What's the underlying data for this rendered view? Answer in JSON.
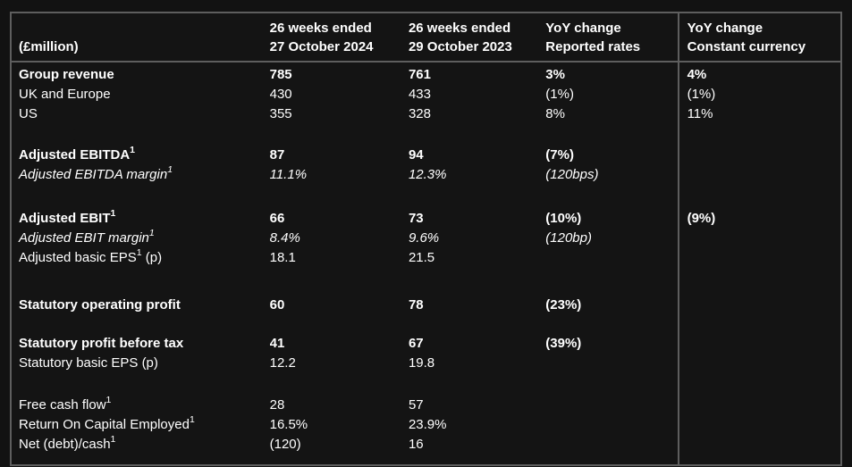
{
  "colors": {
    "page_background": "#121212",
    "table_background": "#141414",
    "border": "#5e5e5e",
    "text": "#ffffff"
  },
  "table": {
    "columns": [
      {
        "line1": "",
        "line2": "(£million)"
      },
      {
        "line1": "26 weeks ended",
        "line2": "27 October 2024"
      },
      {
        "line1": "26 weeks ended",
        "line2": "29 October 2023"
      },
      {
        "line1": "YoY change",
        "line2": "Reported rates"
      },
      {
        "line1": "YoY change",
        "line2": "Constant currency"
      }
    ],
    "rows": [
      {
        "label": "Group revenue",
        "style": "bold",
        "v2024": "785",
        "v2023": "761",
        "yoy_reported": "3%",
        "yoy_constant": "4%"
      },
      {
        "label": "UK and Europe",
        "style": "normal",
        "v2024": "430",
        "v2023": "433",
        "yoy_reported": "(1%)",
        "yoy_constant": "(1%)"
      },
      {
        "label": "US",
        "style": "normal",
        "v2024": "355",
        "v2023": "328",
        "yoy_reported": "8%",
        "yoy_constant": "11%"
      },
      {
        "spacer": 24
      },
      {
        "label": "Adjusted EBITDA",
        "sup": "1",
        "style": "bold",
        "v2024": "87",
        "v2023": "94",
        "yoy_reported": "(7%)",
        "yoy_constant": ""
      },
      {
        "label": "Adjusted EBITDA margin",
        "sup": "1",
        "style": "italic",
        "v2024": "11.1%",
        "v2023": "12.3%",
        "yoy_reported": "(120bps)",
        "yoy_constant": ""
      },
      {
        "spacer": 27
      },
      {
        "label": "Adjusted EBIT",
        "sup": "1",
        "style": "bold",
        "v2024": "66",
        "v2023": "73",
        "yoy_reported": "(10%)",
        "yoy_constant": "(9%)"
      },
      {
        "label": "Adjusted EBIT margin",
        "sup": "1",
        "style": "italic",
        "v2024": "8.4%",
        "v2023": "9.6%",
        "yoy_reported": "(120bp)",
        "yoy_constant": ""
      },
      {
        "label": "Adjusted basic EPS",
        "sup": "1",
        "suffix": " (p)",
        "style": "normal",
        "v2024": "18.1",
        "v2023": "21.5",
        "yoy_reported": "",
        "yoy_constant": ""
      },
      {
        "spacer": 31
      },
      {
        "label": "Statutory operating profit",
        "style": "bold",
        "v2024": "60",
        "v2023": "78",
        "yoy_reported": "(23%)",
        "yoy_constant": ""
      },
      {
        "spacer": 21
      },
      {
        "label": "Statutory profit before tax",
        "style": "bold",
        "v2024": "41",
        "v2023": "67",
        "yoy_reported": "(39%)",
        "yoy_constant": ""
      },
      {
        "label": "Statutory basic EPS (p)",
        "style": "normal",
        "v2024": "12.2",
        "v2023": "19.8",
        "yoy_reported": "",
        "yoy_constant": ""
      },
      {
        "spacer": 25
      },
      {
        "label": "Free cash flow",
        "sup": "1",
        "style": "normal",
        "v2024": "28",
        "v2023": "57",
        "yoy_reported": "",
        "yoy_constant": ""
      },
      {
        "label": "Return On Capital Employed",
        "sup": "1",
        "style": "normal",
        "v2024": "16.5%",
        "v2023": "23.9%",
        "yoy_reported": "",
        "yoy_constant": ""
      },
      {
        "label": "Net (debt)/cash",
        "sup": "1",
        "style": "normal",
        "v2024": "(120)",
        "v2023": "16",
        "yoy_reported": "",
        "yoy_constant": ""
      },
      {
        "spacer": 11
      }
    ]
  }
}
